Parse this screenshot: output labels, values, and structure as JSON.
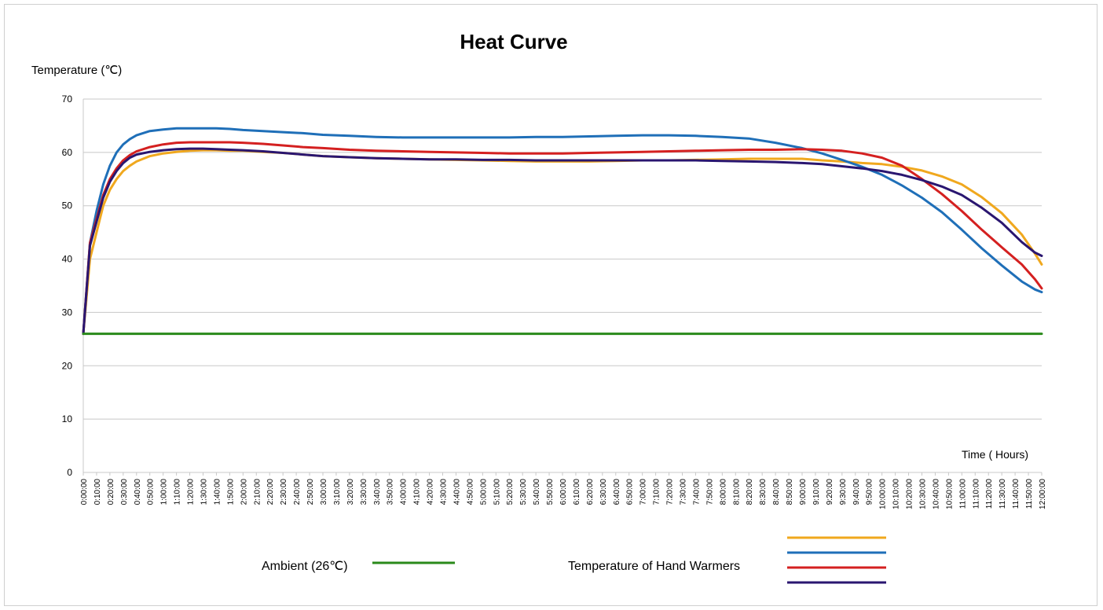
{
  "chart_data": {
    "type": "line",
    "title": "Heat Curve",
    "ylabel": "Temperature (℃)",
    "xlabel": "Time ( Hours)",
    "ylim": [
      0,
      70
    ],
    "yticks": [
      "0",
      "10",
      "20",
      "30",
      "40",
      "50",
      "60",
      "70"
    ],
    "xlim": [
      0,
      720
    ],
    "x_tick_minutes": [
      0,
      10,
      20,
      30,
      40,
      50,
      60,
      70,
      80,
      90,
      100,
      110,
      120,
      130,
      140,
      150,
      160,
      170,
      180,
      190,
      200,
      210,
      220,
      230,
      240,
      250,
      260,
      270,
      280,
      290,
      300,
      310,
      320,
      330,
      340,
      350,
      360,
      370,
      380,
      390,
      400,
      410,
      420,
      430,
      440,
      450,
      460,
      470,
      480,
      490,
      500,
      510,
      520,
      530,
      540,
      550,
      560,
      570,
      580,
      590,
      600,
      610,
      620,
      630,
      640,
      650,
      660,
      670,
      680,
      690,
      700,
      710,
      720
    ],
    "x_tick_labels": [
      "0:00:00",
      "0:10:00",
      "0:20:00",
      "0:30:00",
      "0:40:00",
      "0:50:00",
      "1:00:00",
      "1:10:00",
      "1:20:00",
      "1:30:00",
      "1:40:00",
      "1:50:00",
      "2:00:00",
      "2:10:00",
      "2:20:00",
      "2:30:00",
      "2:40:00",
      "2:50:00",
      "3:00:00",
      "3:10:00",
      "3:20:00",
      "3:30:00",
      "3:40:00",
      "3:50:00",
      "4:00:00",
      "4:10:00",
      "4:20:00",
      "4:30:00",
      "4:40:00",
      "4:50:00",
      "5:00:00",
      "5:10:00",
      "5:20:00",
      "5:30:00",
      "5:40:00",
      "5:50:00",
      "6:00:00",
      "6:10:00",
      "6:20:00",
      "6:30:00",
      "6:40:00",
      "6:50:00",
      "7:00:00",
      "7:10:00",
      "7:20:00",
      "7:30:00",
      "7:40:00",
      "7:50:00",
      "8:00:00",
      "8:10:00",
      "8:20:00",
      "8:30:00",
      "8:40:00",
      "8:50:00",
      "9:00:00",
      "9:10:00",
      "9:20:00",
      "9:30:00",
      "9:40:00",
      "9:50:00",
      "10:00:00",
      "10:10:00",
      "10:20:00",
      "10:30:00",
      "10:40:00",
      "10:50:00",
      "11:00:00",
      "11:10:00",
      "11:20:00",
      "11:30:00",
      "11:40:00",
      "11:50:00",
      "12:00:00"
    ],
    "grid": true,
    "x": [
      0,
      5,
      10,
      15,
      20,
      25,
      30,
      35,
      40,
      50,
      60,
      70,
      80,
      90,
      100,
      110,
      120,
      135,
      150,
      165,
      180,
      200,
      220,
      240,
      260,
      280,
      300,
      320,
      340,
      360,
      380,
      400,
      420,
      440,
      460,
      480,
      500,
      520,
      540,
      555,
      570,
      585,
      600,
      615,
      630,
      645,
      660,
      675,
      690,
      705,
      715,
      720
    ],
    "series": [
      {
        "color": "#f0a81e",
        "values": [
          26,
          40,
          45,
          50,
          53,
          55,
          56.5,
          57.5,
          58.3,
          59.3,
          59.8,
          60.1,
          60.3,
          60.4,
          60.4,
          60.3,
          60.3,
          60.1,
          59.9,
          59.6,
          59.3,
          59.1,
          58.9,
          58.8,
          58.7,
          58.6,
          58.5,
          58.4,
          58.3,
          58.3,
          58.3,
          58.4,
          58.5,
          58.5,
          58.6,
          58.7,
          58.8,
          58.8,
          58.8,
          58.5,
          58.3,
          58.0,
          57.8,
          57.3,
          56.6,
          55.5,
          54.0,
          51.6,
          48.6,
          44.6,
          41.0,
          39.0
        ]
      },
      {
        "color": "#1f6fb8",
        "values": [
          26,
          43,
          49,
          54,
          57.5,
          60,
          61.5,
          62.5,
          63.2,
          64,
          64.3,
          64.5,
          64.5,
          64.5,
          64.5,
          64.4,
          64.2,
          64.0,
          63.8,
          63.6,
          63.3,
          63.1,
          62.9,
          62.8,
          62.8,
          62.8,
          62.8,
          62.8,
          62.9,
          62.9,
          63.0,
          63.1,
          63.2,
          63.2,
          63.1,
          62.9,
          62.6,
          61.8,
          60.8,
          59.8,
          58.6,
          57.3,
          55.8,
          53.8,
          51.5,
          48.8,
          45.5,
          42.0,
          38.8,
          35.8,
          34.3,
          33.8
        ]
      },
      {
        "color": "#d42020",
        "values": [
          26,
          43,
          47.5,
          52,
          55,
          57,
          58.5,
          59.5,
          60.2,
          61.0,
          61.5,
          61.8,
          61.9,
          61.9,
          61.9,
          61.9,
          61.8,
          61.6,
          61.3,
          61.0,
          60.8,
          60.5,
          60.3,
          60.2,
          60.1,
          60.0,
          59.9,
          59.8,
          59.8,
          59.8,
          59.9,
          60.0,
          60.1,
          60.2,
          60.3,
          60.4,
          60.5,
          60.5,
          60.6,
          60.5,
          60.3,
          59.8,
          59.0,
          57.5,
          55.0,
          52.2,
          49.0,
          45.5,
          42.2,
          39.0,
          36.2,
          34.5
        ]
      },
      {
        "color": "#2a1670",
        "values": [
          26,
          42.5,
          47,
          51.5,
          54.5,
          56.5,
          58,
          59,
          59.6,
          60.1,
          60.4,
          60.6,
          60.7,
          60.7,
          60.6,
          60.5,
          60.4,
          60.2,
          59.9,
          59.6,
          59.3,
          59.1,
          58.9,
          58.8,
          58.7,
          58.7,
          58.6,
          58.6,
          58.5,
          58.5,
          58.5,
          58.5,
          58.5,
          58.5,
          58.5,
          58.4,
          58.3,
          58.2,
          58.0,
          57.8,
          57.4,
          57.0,
          56.5,
          55.8,
          54.8,
          53.6,
          52.0,
          49.6,
          46.8,
          43.2,
          41.2,
          40.6
        ]
      },
      {
        "color": "#2a8a1a",
        "values": [
          26,
          26,
          26,
          26,
          26,
          26,
          26,
          26,
          26,
          26,
          26,
          26,
          26,
          26,
          26,
          26,
          26,
          26,
          26,
          26,
          26,
          26,
          26,
          26,
          26,
          26,
          26,
          26,
          26,
          26,
          26,
          26,
          26,
          26,
          26,
          26,
          26,
          26,
          26,
          26,
          26,
          26,
          26,
          26,
          26,
          26,
          26,
          26,
          26,
          26,
          26,
          26
        ]
      }
    ],
    "legend": {
      "placement": "bottom",
      "ambient_label": "Ambient (26℃)",
      "ambient_color": "#2a8a1a",
      "warmers_label": "Temperature of Hand Warmers",
      "warmers_colors": [
        "#f0a81e",
        "#1f6fb8",
        "#d42020",
        "#2a1670"
      ]
    }
  }
}
